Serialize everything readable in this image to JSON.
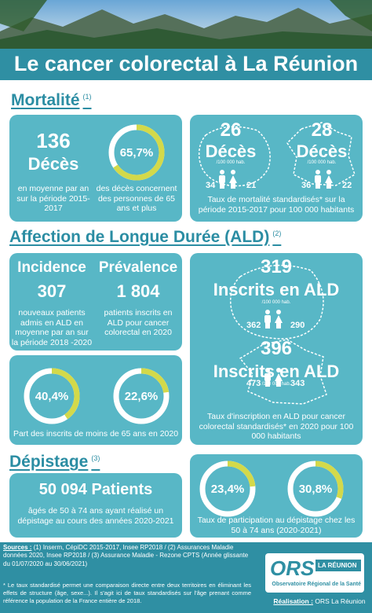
{
  "header": {
    "title": "Le cancer colorectal à La Réunion"
  },
  "mortalite": {
    "heading": "Mortalité",
    "ref": "(1)",
    "deces": {
      "number": "136",
      "label": "Décès",
      "text": "en moyenne par an sur la période 2015-2017"
    },
    "share": {
      "value": 65.7,
      "label": "65,7%",
      "text": "des décès concernent des personnes de 65 ans et plus"
    },
    "rates": [
      {
        "number": "26",
        "label": "Décès",
        "unit": "/100 000 hab.",
        "men": "34",
        "women": "21"
      },
      {
        "number": "28",
        "label": "Décès",
        "unit": "/100 000 hab.",
        "men": "36",
        "women": "22"
      }
    ],
    "caption": "Taux de mortalité standardisés* sur la période 2015-2017 pour 100 000 habitants"
  },
  "ald": {
    "heading": "Affection de Longue Durée (ALD)",
    "ref": "(2)",
    "incidence": {
      "title": "Incidence",
      "number": "307",
      "text": "nouveaux patients admis en ALD en moyenne par an sur la période 2018 -2020"
    },
    "prevalence": {
      "title": "Prévalence",
      "number": "1 804",
      "text": "patients inscrits en ALD pour cancer colorectal en 2020"
    },
    "young": {
      "shares": [
        {
          "value": 40.4,
          "label": "40,4%"
        },
        {
          "value": 22.6,
          "label": "22,6%"
        }
      ],
      "caption": "Part des inscrits de moins de 65 ans en 2020"
    },
    "rates": [
      {
        "number": "319",
        "label": "Inscrits en ALD",
        "unit": "/100 000 hab.",
        "men": "362",
        "women": "290"
      },
      {
        "number": "396",
        "label": "Inscrits en ALD",
        "unit": "/100 000 hab.",
        "men": "473",
        "women": "343"
      }
    ],
    "caption": "Taux d'inscription en ALD pour cancer colorectal standardisés* en 2020 pour 100 000 habitants"
  },
  "depistage": {
    "heading": "Dépistage",
    "ref": "(3)",
    "patients": "50 094 Patients",
    "text": "âgés de 50 à 74 ans ayant réalisé un dépistage au cours des années 2020-2021",
    "shares": [
      {
        "value": 23.4,
        "label": "23,4%"
      },
      {
        "value": 30.8,
        "label": "30,8%"
      }
    ],
    "caption": "Taux de participation au dépistage chez les 50 à 74 ans (2020-2021)"
  },
  "footer": {
    "sources_label": "Sources :",
    "sources": "(1) Inserm, CépiDC 2015-2017, Insee RP2018 / (2) Assurances Maladie données 2020, Insee RP2018 / (3) Assurance Maladie - Rezone CPTS (Année glissante du 01/07/2020 au 30/06/2021)",
    "note": "* Le taux standardisé permet une comparaison directe entre deux territoires en éliminant les effets de structure (âge, sexe...). Il s'agit ici de taux standardisés sur l'âge prenant comme référence la population de la France entière de 2018.",
    "logo": {
      "name": "ORS",
      "region": "LA RÉUNION",
      "full": "Observatoire Régional de la Santé"
    },
    "credit_label": "Réalisation :",
    "credit": "ORS La Réunion"
  }
}
